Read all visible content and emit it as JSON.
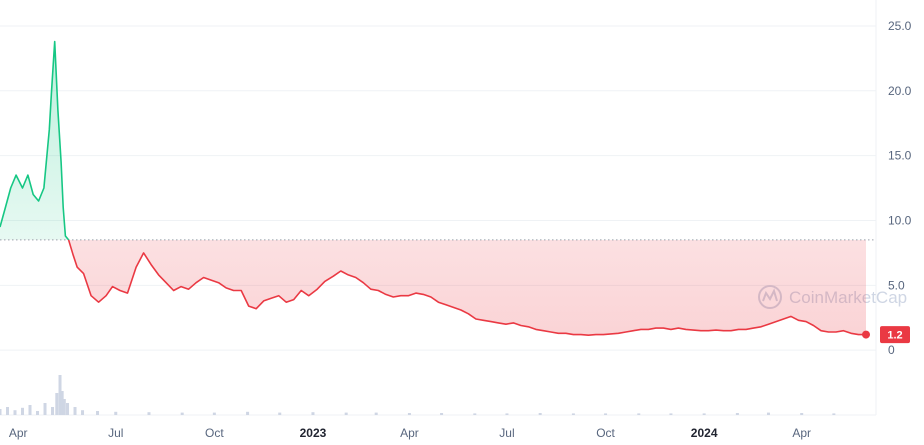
{
  "chart_data": {
    "type": "area",
    "y_axis": {
      "ticks": [
        0,
        5.0,
        10.0,
        15.0,
        20.0,
        25.0
      ],
      "tick_labels": [
        "0",
        "5.0",
        "10.0",
        "15.0",
        "20.0",
        "25.0"
      ],
      "ylim": [
        -5,
        27
      ]
    },
    "x_axis": {
      "tick_labels": [
        {
          "label": "Apr",
          "date": "2022-04-01",
          "bold": false
        },
        {
          "label": "Jul",
          "date": "2022-07-01",
          "bold": false
        },
        {
          "label": "Oct",
          "date": "2022-10-01",
          "bold": false
        },
        {
          "label": "2023",
          "date": "2023-01-01",
          "bold": true
        },
        {
          "label": "Apr",
          "date": "2023-04-01",
          "bold": false
        },
        {
          "label": "Jul",
          "date": "2023-07-01",
          "bold": false
        },
        {
          "label": "Oct",
          "date": "2023-10-01",
          "bold": false
        },
        {
          "label": "2024",
          "date": "2024-01-01",
          "bold": true
        },
        {
          "label": "Apr",
          "date": "2024-04-01",
          "bold": false
        }
      ]
    },
    "reference_price": 8.5,
    "current_price": {
      "value": 1.2,
      "label": "1.2"
    },
    "series": [
      {
        "x": [
          "2022-03-15",
          "2022-03-20",
          "2022-03-25",
          "2022-03-30",
          "2022-04-05",
          "2022-04-10",
          "2022-04-15",
          "2022-04-20",
          "2022-04-25",
          "2022-04-30",
          "2022-05-02",
          "2022-05-05",
          "2022-05-08",
          "2022-05-11",
          "2022-05-13",
          "2022-05-15",
          "2022-05-18",
          "2022-05-22",
          "2022-05-26",
          "2022-06-01",
          "2022-06-08",
          "2022-06-15",
          "2022-06-22",
          "2022-06-28",
          "2022-07-05",
          "2022-07-12",
          "2022-07-20",
          "2022-07-27",
          "2022-08-03",
          "2022-08-10",
          "2022-08-17",
          "2022-08-24",
          "2022-08-31",
          "2022-09-07",
          "2022-09-14",
          "2022-09-21",
          "2022-09-28",
          "2022-10-05",
          "2022-10-12",
          "2022-10-19",
          "2022-10-26",
          "2022-11-02",
          "2022-11-09",
          "2022-11-16",
          "2022-11-23",
          "2022-11-30",
          "2022-12-07",
          "2022-12-14",
          "2022-12-21",
          "2022-12-28",
          "2023-01-05",
          "2023-01-12",
          "2023-01-20",
          "2023-01-27",
          "2023-02-03",
          "2023-02-10",
          "2023-02-17",
          "2023-02-24",
          "2023-03-03",
          "2023-03-10",
          "2023-03-17",
          "2023-03-24",
          "2023-03-31",
          "2023-04-07",
          "2023-04-14",
          "2023-04-21",
          "2023-04-28",
          "2023-05-05",
          "2023-05-12",
          "2023-05-19",
          "2023-05-26",
          "2023-06-02",
          "2023-06-09",
          "2023-06-16",
          "2023-06-23",
          "2023-06-30",
          "2023-07-07",
          "2023-07-14",
          "2023-07-21",
          "2023-07-28",
          "2023-08-04",
          "2023-08-11",
          "2023-08-18",
          "2023-08-25",
          "2023-09-01",
          "2023-09-08",
          "2023-09-15",
          "2023-09-22",
          "2023-09-29",
          "2023-10-06",
          "2023-10-13",
          "2023-10-20",
          "2023-10-27",
          "2023-11-03",
          "2023-11-10",
          "2023-11-17",
          "2023-11-24",
          "2023-12-01",
          "2023-12-08",
          "2023-12-15",
          "2023-12-22",
          "2023-12-29",
          "2024-01-05",
          "2024-01-12",
          "2024-01-19",
          "2024-01-26",
          "2024-02-02",
          "2024-02-09",
          "2024-02-16",
          "2024-02-23",
          "2024-03-01",
          "2024-03-08",
          "2024-03-15",
          "2024-03-22",
          "2024-03-29",
          "2024-04-05",
          "2024-04-12",
          "2024-04-19",
          "2024-04-26",
          "2024-05-03",
          "2024-05-10",
          "2024-05-17",
          "2024-05-24",
          "2024-05-31"
        ],
        "y": [
          9.5,
          11,
          12.5,
          13.5,
          12.5,
          13.5,
          12,
          11.5,
          12.5,
          17,
          19.8,
          23.8,
          18.5,
          14.5,
          11,
          8.8,
          8.5,
          7.4,
          6.4,
          5.9,
          4.2,
          3.7,
          4.2,
          4.9,
          4.6,
          4.4,
          6.4,
          7.5,
          6.6,
          5.8,
          5.2,
          4.6,
          4.9,
          4.7,
          5.2,
          5.6,
          5.4,
          5.2,
          4.8,
          4.6,
          4.6,
          3.4,
          3.2,
          3.8,
          4.0,
          4.2,
          3.7,
          3.9,
          4.6,
          4.2,
          4.7,
          5.3,
          5.7,
          6.1,
          5.8,
          5.6,
          5.2,
          4.7,
          4.6,
          4.3,
          4.1,
          4.2,
          4.2,
          4.4,
          4.3,
          4.1,
          3.7,
          3.5,
          3.3,
          3.1,
          2.8,
          2.4,
          2.3,
          2.2,
          2.1,
          2.0,
          2.1,
          1.9,
          1.8,
          1.6,
          1.5,
          1.4,
          1.3,
          1.3,
          1.2,
          1.2,
          1.15,
          1.2,
          1.2,
          1.25,
          1.3,
          1.4,
          1.5,
          1.6,
          1.6,
          1.7,
          1.7,
          1.6,
          1.7,
          1.6,
          1.55,
          1.5,
          1.5,
          1.55,
          1.5,
          1.5,
          1.6,
          1.6,
          1.7,
          1.8,
          2.0,
          2.2,
          2.4,
          2.6,
          2.3,
          2.2,
          1.9,
          1.5,
          1.4,
          1.4,
          1.5,
          1.3,
          1.2,
          1.2
        ]
      }
    ],
    "volume": {
      "x": [
        "2022-03-15",
        "2022-03-22",
        "2022-03-29",
        "2022-04-05",
        "2022-04-12",
        "2022-04-19",
        "2022-04-26",
        "2022-05-03",
        "2022-05-07",
        "2022-05-10",
        "2022-05-12",
        "2022-05-14",
        "2022-05-17",
        "2022-05-24",
        "2022-05-31",
        "2022-06-14",
        "2022-07-01",
        "2022-08-01",
        "2022-09-01",
        "2022-10-01",
        "2022-11-01",
        "2022-12-01",
        "2023-01-01",
        "2023-02-01",
        "2023-03-01",
        "2023-04-01",
        "2023-05-01",
        "2023-06-01",
        "2023-07-01",
        "2023-08-01",
        "2023-09-01",
        "2023-10-01",
        "2023-11-01",
        "2023-12-01",
        "2024-01-01",
        "2024-02-01",
        "2024-03-01",
        "2024-04-01",
        "2024-05-01"
      ],
      "values": [
        0.15,
        0.2,
        0.12,
        0.18,
        0.25,
        0.1,
        0.3,
        0.2,
        0.55,
        1.0,
        0.6,
        0.4,
        0.3,
        0.2,
        0.12,
        0.1,
        0.08,
        0.07,
        0.06,
        0.06,
        0.08,
        0.06,
        0.07,
        0.06,
        0.06,
        0.05,
        0.05,
        0.04,
        0.04,
        0.05,
        0.04,
        0.04,
        0.04,
        0.04,
        0.04,
        0.05,
        0.06,
        0.05,
        0.04
      ]
    }
  },
  "watermark": {
    "text": "CoinMarketCap"
  },
  "colors": {
    "up": "#16c784",
    "down": "#ea3943",
    "reference_line": "#9aa0ab",
    "grid": "#eff2f5",
    "volume": "#cfd6e4"
  }
}
